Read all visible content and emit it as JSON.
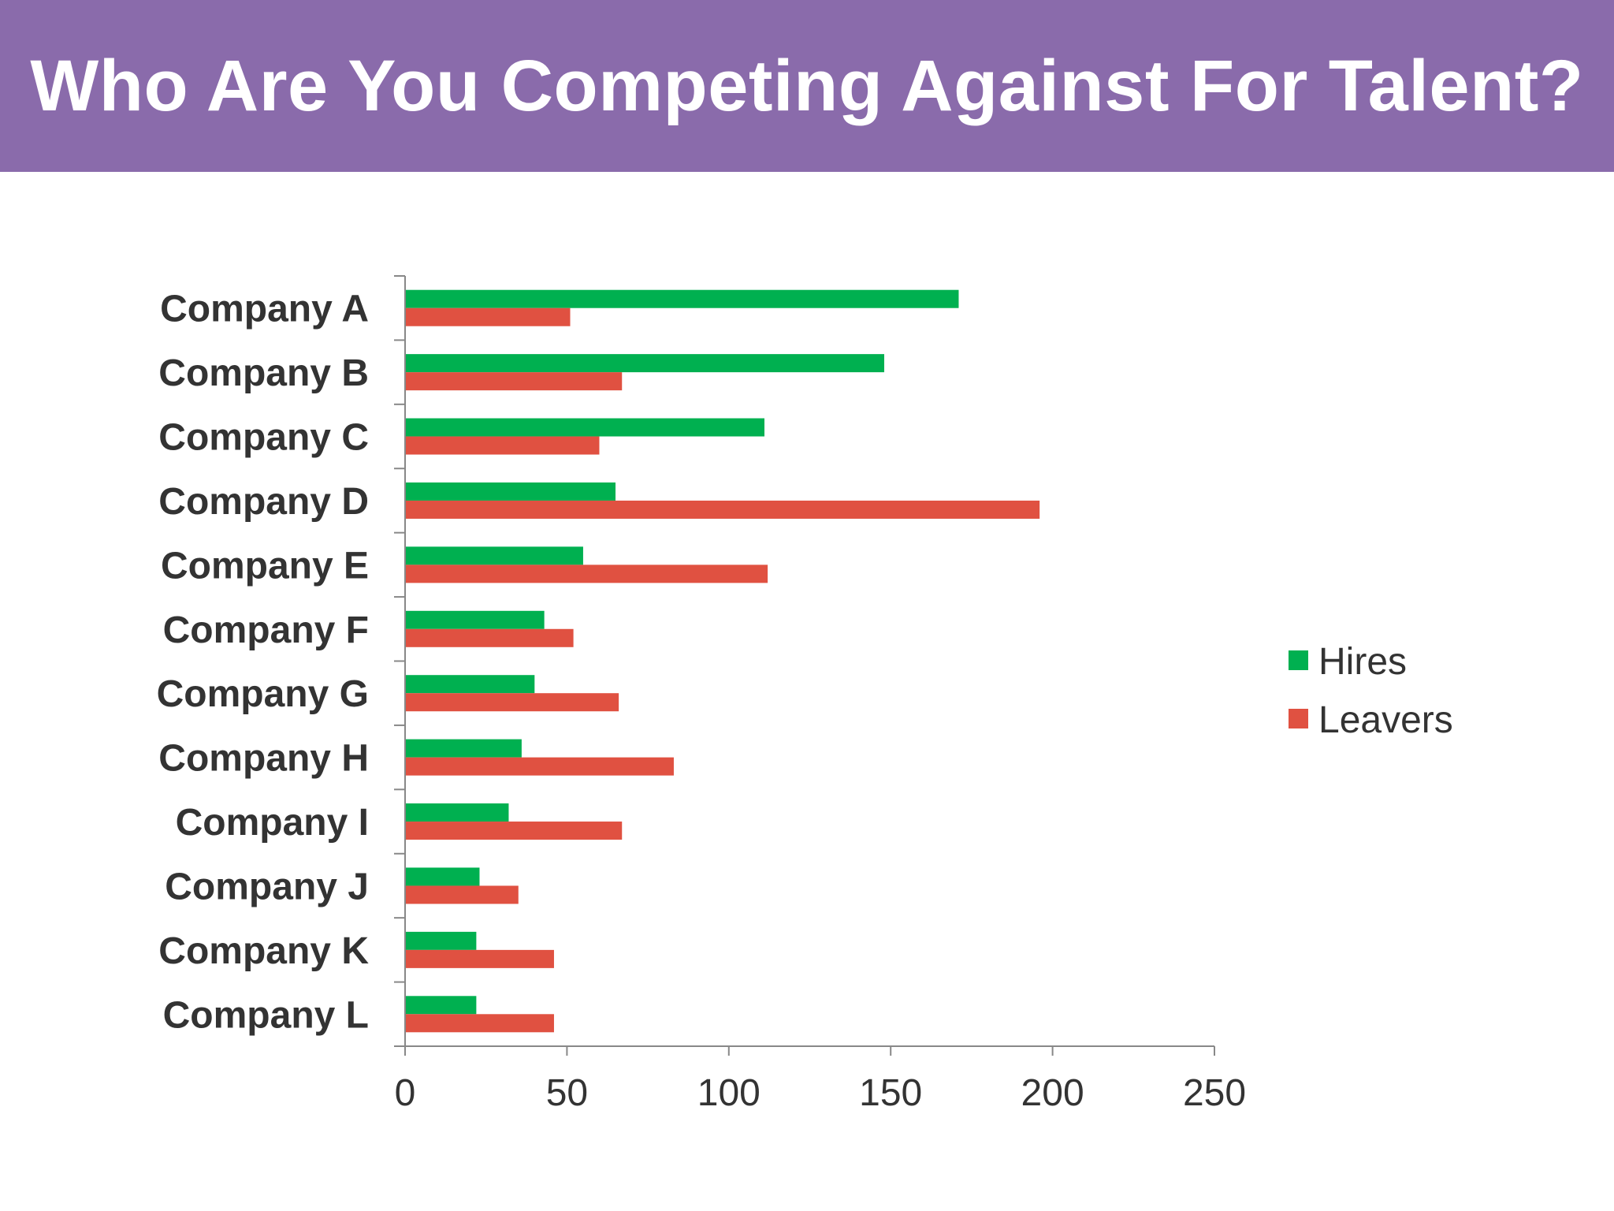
{
  "header": {
    "title": "Who Are You Competing Against For Talent?",
    "background_color": "#8a6bab"
  },
  "chart_data": {
    "type": "bar",
    "orientation": "horizontal",
    "categories": [
      "Company A",
      "Company B",
      "Company C",
      "Company D",
      "Company E",
      "Company F",
      "Company G",
      "Company H",
      "Company I",
      "Company J",
      "Company K",
      "Company L"
    ],
    "series": [
      {
        "name": "Hires",
        "color": "#00b050",
        "values": [
          171,
          148,
          111,
          65,
          55,
          43,
          40,
          36,
          32,
          23,
          22,
          22
        ]
      },
      {
        "name": "Leavers",
        "color": "#e05141",
        "values": [
          51,
          67,
          60,
          196,
          112,
          52,
          66,
          83,
          67,
          35,
          46,
          46
        ]
      }
    ],
    "xlim": [
      0,
      250
    ],
    "xticks": [
      0,
      50,
      100,
      150,
      200,
      250
    ],
    "grid": false,
    "legend_position": "right"
  }
}
